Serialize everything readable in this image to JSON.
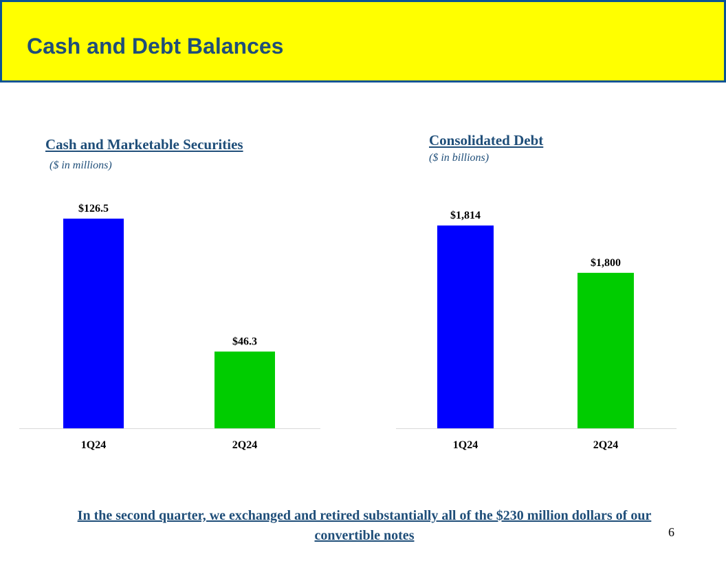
{
  "header": {
    "title": "Cash and Debt Balances"
  },
  "colors": {
    "q1": "#0000ff",
    "q2": "#00cc00",
    "title": "#1f4e79",
    "header_bg": "#ffff00",
    "header_border": "#0b5394"
  },
  "chart_data": [
    {
      "type": "bar",
      "title": "Cash and Marketable Securities",
      "subtitle": "($ in millions)",
      "categories": [
        "1Q24",
        "2Q24"
      ],
      "values": [
        126.5,
        46.3
      ],
      "labels": [
        "$126.5",
        "$46.3"
      ],
      "ylim": [
        0,
        126.5
      ]
    },
    {
      "type": "bar",
      "title": "Consolidated Debt",
      "subtitle": "($ in billions)",
      "categories": [
        "1Q24",
        "2Q24"
      ],
      "values": [
        1814,
        1800
      ],
      "labels": [
        "$1,814",
        "$1,800"
      ],
      "ylim": [
        1754,
        1814
      ]
    }
  ],
  "footer": {
    "note": "In the second quarter, we exchanged and retired substantially all of the $230 million dollars of our convertible notes",
    "page_number": "6"
  }
}
